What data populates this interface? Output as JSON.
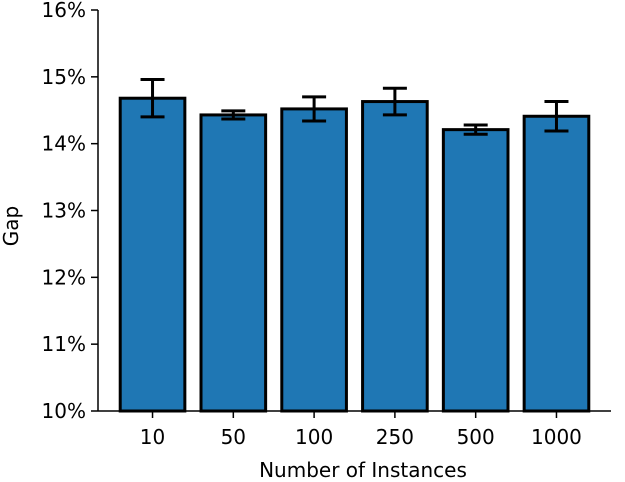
{
  "chart_data": {
    "type": "bar",
    "title": "",
    "xlabel": "Number of Instances",
    "ylabel": "Gap",
    "categories": [
      "10",
      "50",
      "100",
      "250",
      "500",
      "1000"
    ],
    "values": [
      14.68,
      14.43,
      14.52,
      14.63,
      14.21,
      14.41
    ],
    "errors": [
      0.28,
      0.06,
      0.18,
      0.2,
      0.07,
      0.22
    ],
    "ylim": [
      10,
      16
    ],
    "yticks": [
      10,
      11,
      12,
      13,
      14,
      15,
      16
    ],
    "ytick_labels": [
      "10%",
      "11%",
      "12%",
      "13%",
      "14%",
      "15%",
      "16%"
    ],
    "grid": false,
    "colors": {
      "bar_fill": "#1f77b4",
      "bar_edge": "#000000",
      "error_bar": "#000000"
    }
  }
}
